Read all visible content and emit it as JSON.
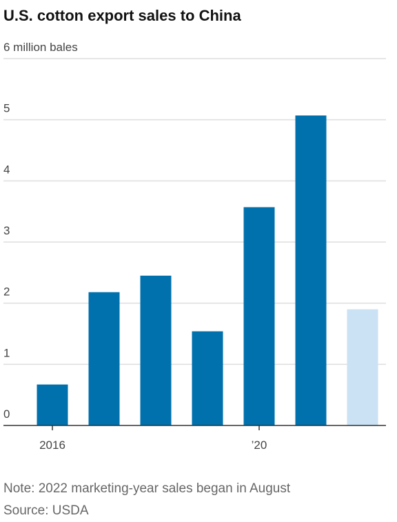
{
  "chart_data": {
    "type": "bar",
    "title": "U.S. cotton export sales to China",
    "categories": [
      "2016",
      null,
      null,
      null,
      "’20",
      null,
      null
    ],
    "values": [
      0.67,
      2.18,
      2.45,
      1.54,
      3.57,
      5.07,
      1.9
    ],
    "colors": [
      "#0071ad",
      "#0071ad",
      "#0071ad",
      "#0071ad",
      "#0071ad",
      "#0071ad",
      "#cbe2f4"
    ],
    "ylim": [
      0,
      6
    ],
    "yticks": [
      0,
      1,
      2,
      3,
      4,
      5,
      {
        "value": 6,
        "label": "6 million bales"
      }
    ],
    "grid": true,
    "note": "Note: 2022 marketing-year sales began in August",
    "source": "Source: USDA"
  }
}
